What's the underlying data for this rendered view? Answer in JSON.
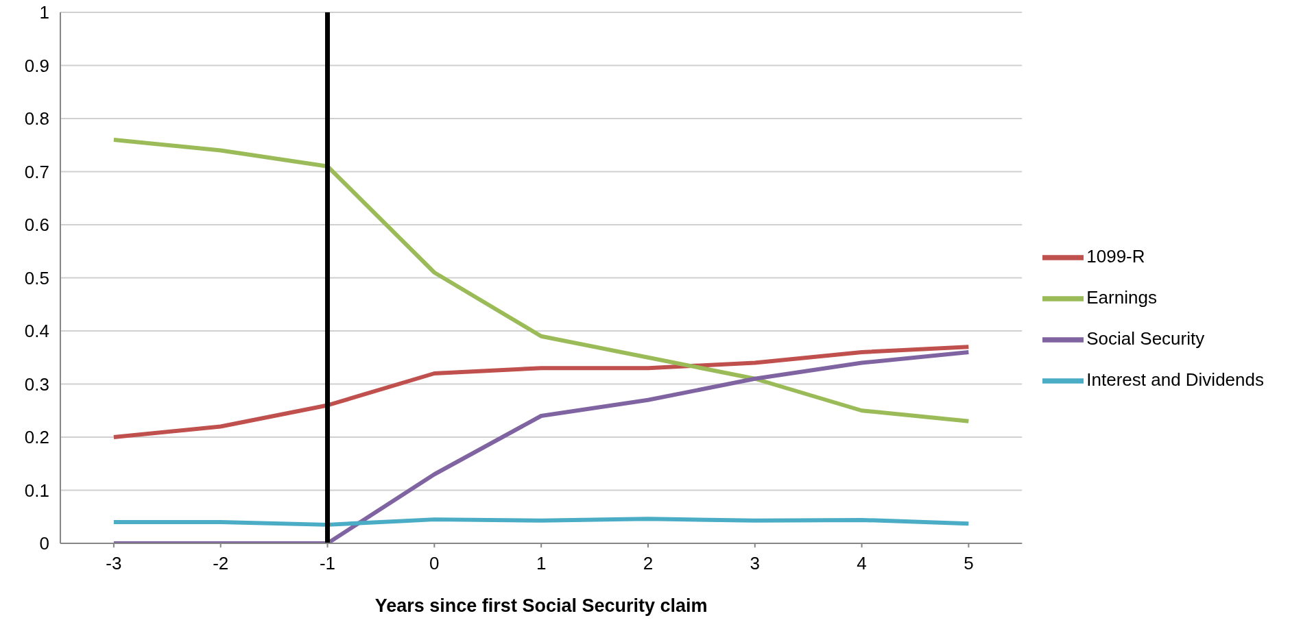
{
  "chart_data": {
    "type": "line",
    "xlabel": "Years since first Social Security claim",
    "x": [
      -3,
      -2,
      -1,
      0,
      1,
      2,
      3,
      4,
      5
    ],
    "xlim": [
      -3.5,
      5.5
    ],
    "xticks": [
      -3,
      -2,
      -1,
      0,
      1,
      2,
      3,
      4,
      5
    ],
    "ylim": [
      0,
      1
    ],
    "yticks": [
      0,
      0.1,
      0.2,
      0.3,
      0.4,
      0.5,
      0.6,
      0.7,
      0.8,
      0.9,
      1
    ],
    "series": [
      {
        "name": "1099-R",
        "color": "#c0504d",
        "values": [
          0.2,
          0.22,
          0.26,
          0.32,
          0.33,
          0.33,
          0.34,
          0.36,
          0.37
        ]
      },
      {
        "name": "Earnings",
        "color": "#9bbb59",
        "values": [
          0.76,
          0.74,
          0.71,
          0.51,
          0.39,
          0.35,
          0.31,
          0.25,
          0.23
        ]
      },
      {
        "name": "Social Security",
        "color": "#8064a2",
        "values": [
          0,
          0,
          0,
          0.13,
          0.24,
          0.27,
          0.31,
          0.34,
          0.36
        ]
      },
      {
        "name": "Interest and Dividends",
        "color": "#4bacc6",
        "values": [
          0.04,
          0.04,
          0.035,
          0.045,
          0.043,
          0.046,
          0.043,
          0.044,
          0.037
        ]
      }
    ],
    "ref_lines": [
      {
        "axis": "x",
        "value": -1,
        "color": "#000000"
      }
    ],
    "grid": "y",
    "legend": "right",
    "marker": "none",
    "line_style": "solid"
  }
}
